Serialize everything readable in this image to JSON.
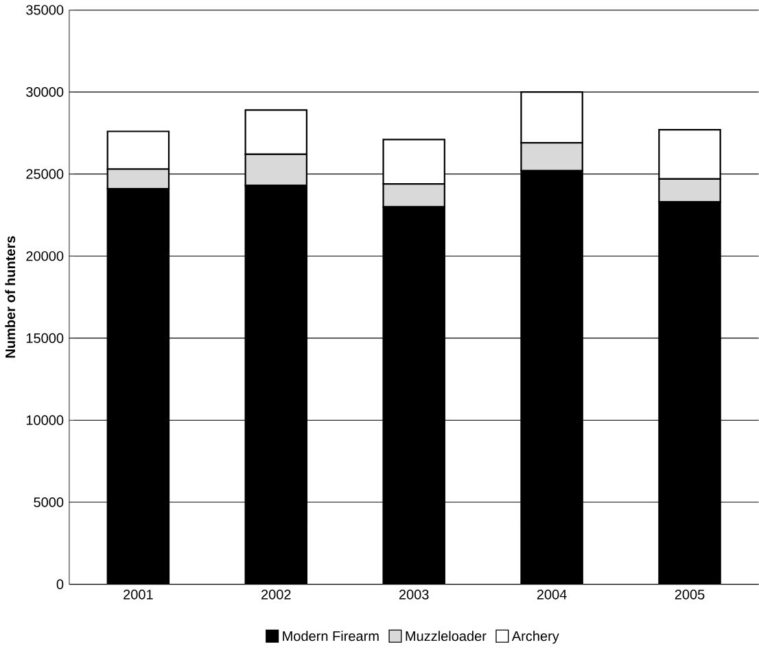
{
  "chart_data": {
    "type": "bar",
    "stacked": true,
    "ylabel": "Number of hunters",
    "categories": [
      "2001",
      "2002",
      "2003",
      "2004",
      "2005"
    ],
    "series": [
      {
        "name": "Modern Firearm",
        "color": "#000000",
        "values": [
          24100,
          24300,
          23000,
          25200,
          23300
        ]
      },
      {
        "name": "Muzzleloader",
        "color": "#d9d9d9",
        "values": [
          1200,
          1900,
          1400,
          1700,
          1400
        ]
      },
      {
        "name": "Archery",
        "color": "#ffffff",
        "values": [
          2300,
          2700,
          2700,
          3100,
          3000
        ]
      }
    ],
    "ylim": [
      0,
      35000
    ],
    "yticks": [
      0,
      5000,
      10000,
      15000,
      20000,
      25000,
      30000,
      35000
    ],
    "grid": "y",
    "legend": "bottom"
  }
}
